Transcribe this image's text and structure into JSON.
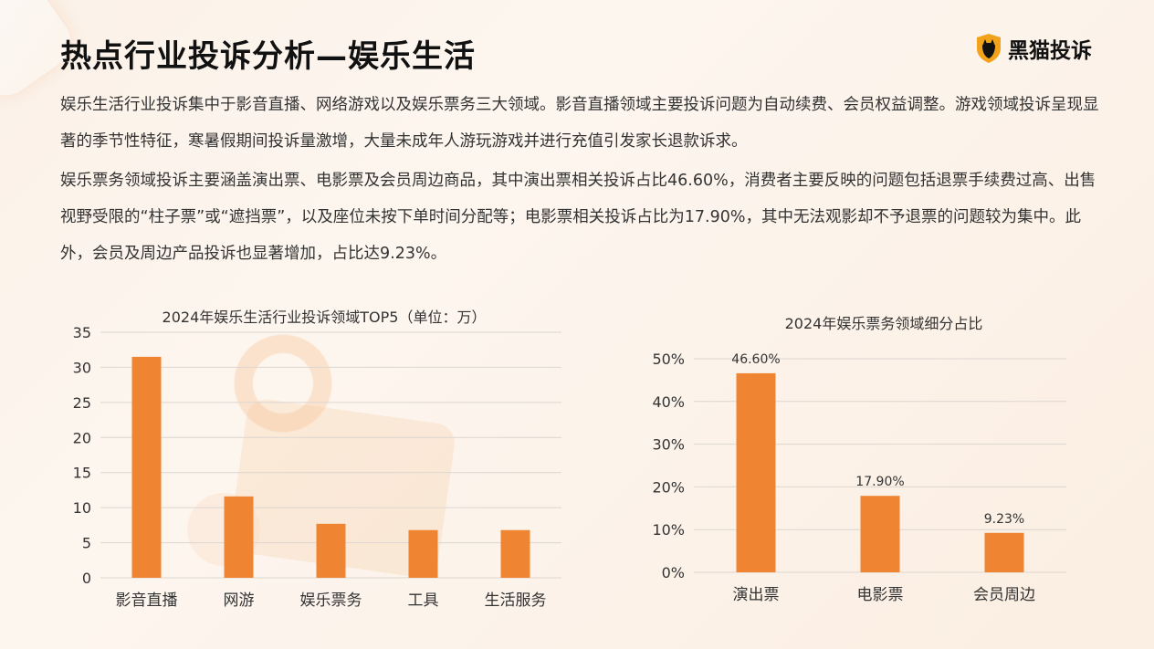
{
  "title": "热点行业投诉分析—娱乐生活",
  "logo": {
    "text": "黑猫投诉",
    "icon": "black-cat-shield-icon"
  },
  "paragraphs": [
    "娱乐生活行业投诉集中于影音直播、网络游戏以及娱乐票务三大领域。影音直播领域主要投诉问题为自动续费、会员权益调整。游戏领域投诉呈现显著的季节性特征，寒暑假期间投诉量激增，大量未成年人游玩游戏并进行充值引发家长退款诉求。",
    "娱乐票务领域投诉主要涵盖演出票、电影票及会员周边商品，其中演出票相关投诉占比46.60%，消费者主要反映的问题包括退票手续费过高、出售视野受限的“柱子票”或“遮挡票”，以及座位未按下单时间分配等；电影票相关投诉占比为17.90%，其中无法观影却不予退票的问题较为集中。此外，会员及周边产品投诉也显著增加，占比达9.23%。"
  ],
  "colors": {
    "bar": "#ef8532",
    "grid": "#dcd6d0",
    "text": "#333333"
  },
  "chart_data": [
    {
      "type": "bar",
      "title": "2024年娱乐生活行业投诉领域TOP5（单位：万）",
      "categories": [
        "影音直播",
        "网游",
        "娱乐票务",
        "工具",
        "生活服务"
      ],
      "values": [
        31.5,
        11.6,
        7.7,
        6.8,
        6.8
      ],
      "ylim": [
        0,
        35
      ],
      "yticks": [
        0,
        5,
        10,
        15,
        20,
        25,
        30,
        35
      ],
      "grid": true
    },
    {
      "type": "bar",
      "title": "2024年娱乐票务领域细分占比",
      "categories": [
        "演出票",
        "电影票",
        "会员周边"
      ],
      "values": [
        46.6,
        17.9,
        9.23
      ],
      "data_labels": [
        "46.60%",
        "17.90%",
        "9.23%"
      ],
      "ylim": [
        0,
        50
      ],
      "yticks": [
        0,
        10,
        20,
        30,
        40,
        50
      ],
      "ytick_labels": [
        "0%",
        "10%",
        "20%",
        "30%",
        "40%",
        "50%"
      ],
      "grid": true
    }
  ]
}
